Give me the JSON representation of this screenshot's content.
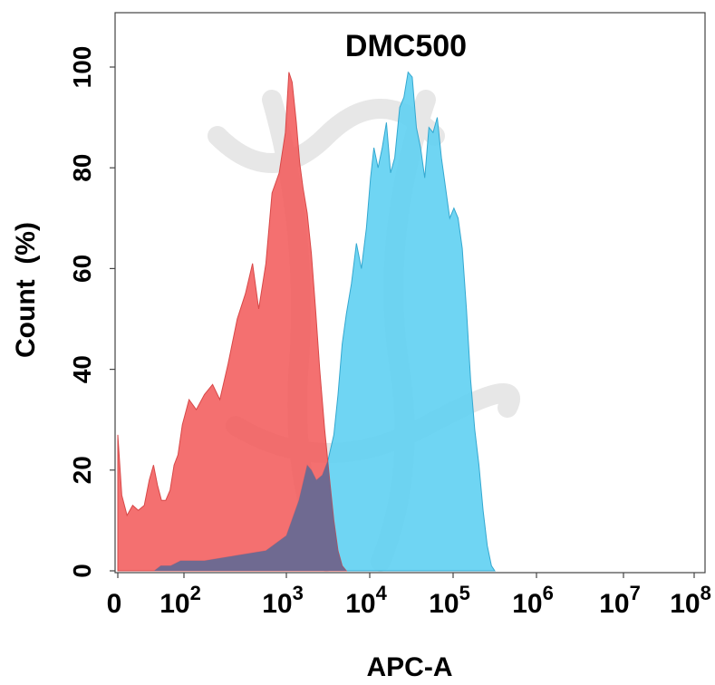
{
  "chart_data": {
    "type": "area",
    "title": "DMC500",
    "xlabel": "APC-A",
    "ylabel": "Count  (%)",
    "ylim": [
      0,
      110
    ],
    "yticks": [
      "0",
      "20",
      "40",
      "60",
      "80",
      "100"
    ],
    "xticks": [
      {
        "base": "0",
        "exp": ""
      },
      {
        "base": "10",
        "exp": "2"
      },
      {
        "base": "10",
        "exp": "3"
      },
      {
        "base": "10",
        "exp": "4"
      },
      {
        "base": "10",
        "exp": "5"
      },
      {
        "base": "10",
        "exp": "6"
      },
      {
        "base": "10",
        "exp": "7"
      },
      {
        "base": "10",
        "exp": "8"
      }
    ],
    "grid": false,
    "colors": {
      "negative": "#f25c5c",
      "negative_line": "#d84848",
      "positive": "#5fd0f2",
      "positive_line": "#34a8d0",
      "overlap": "#5a6a98"
    },
    "series": [
      {
        "values": [
          [
            0,
            27
          ],
          [
            0.12,
            15
          ],
          [
            0.28,
            11
          ],
          [
            0.45,
            13
          ],
          [
            0.62,
            12
          ],
          [
            0.8,
            13
          ],
          [
            0.95,
            18
          ],
          [
            1.08,
            21
          ],
          [
            1.2,
            17
          ],
          [
            1.32,
            14
          ],
          [
            1.45,
            14
          ],
          [
            1.58,
            16
          ],
          [
            1.7,
            21
          ],
          [
            1.82,
            23
          ],
          [
            1.95,
            29
          ],
          [
            2.05,
            34
          ],
          [
            2.12,
            32
          ],
          [
            2.2,
            35
          ],
          [
            2.28,
            37
          ],
          [
            2.35,
            34
          ],
          [
            2.43,
            41
          ],
          [
            2.52,
            50
          ],
          [
            2.6,
            55
          ],
          [
            2.67,
            61
          ],
          [
            2.73,
            52
          ],
          [
            2.8,
            61
          ],
          [
            2.86,
            75
          ],
          [
            2.93,
            79
          ],
          [
            2.99,
            87
          ],
          [
            3.03,
            99
          ],
          [
            3.07,
            97
          ],
          [
            3.12,
            89
          ],
          [
            3.16,
            81
          ],
          [
            3.2,
            76
          ],
          [
            3.25,
            71
          ],
          [
            3.3,
            63
          ],
          [
            3.35,
            52
          ],
          [
            3.4,
            40
          ],
          [
            3.46,
            28
          ],
          [
            3.52,
            18
          ],
          [
            3.57,
            10
          ],
          [
            3.62,
            4
          ],
          [
            3.67,
            1
          ],
          [
            3.72,
            0
          ]
        ]
      },
      {
        "values": [
          [
            1.1,
            0
          ],
          [
            1.3,
            1
          ],
          [
            1.6,
            1
          ],
          [
            1.9,
            2
          ],
          [
            2.2,
            2
          ],
          [
            2.5,
            3
          ],
          [
            2.8,
            4
          ],
          [
            3.0,
            7
          ],
          [
            3.15,
            14
          ],
          [
            3.25,
            21
          ],
          [
            3.3,
            20
          ],
          [
            3.36,
            18
          ],
          [
            3.43,
            19
          ],
          [
            3.5,
            22
          ],
          [
            3.57,
            27
          ],
          [
            3.62,
            35
          ],
          [
            3.67,
            45
          ],
          [
            3.72,
            51
          ],
          [
            3.78,
            57
          ],
          [
            3.84,
            65
          ],
          [
            3.9,
            60
          ],
          [
            3.96,
            68
          ],
          [
            4.01,
            78
          ],
          [
            4.05,
            84
          ],
          [
            4.1,
            80
          ],
          [
            4.15,
            84
          ],
          [
            4.2,
            89
          ],
          [
            4.25,
            79
          ],
          [
            4.3,
            82
          ],
          [
            4.36,
            92
          ],
          [
            4.41,
            94
          ],
          [
            4.46,
            99
          ],
          [
            4.51,
            98
          ],
          [
            4.56,
            88
          ],
          [
            4.61,
            84
          ],
          [
            4.66,
            78
          ],
          [
            4.71,
            88
          ],
          [
            4.76,
            87
          ],
          [
            4.81,
            90
          ],
          [
            4.86,
            82
          ],
          [
            4.91,
            76
          ],
          [
            4.96,
            70
          ],
          [
            5.01,
            72
          ],
          [
            5.06,
            70
          ],
          [
            5.11,
            64
          ],
          [
            5.16,
            52
          ],
          [
            5.21,
            38
          ],
          [
            5.26,
            28
          ],
          [
            5.31,
            21
          ],
          [
            5.36,
            12
          ],
          [
            5.41,
            5
          ],
          [
            5.46,
            1
          ],
          [
            5.5,
            0
          ]
        ]
      }
    ]
  }
}
